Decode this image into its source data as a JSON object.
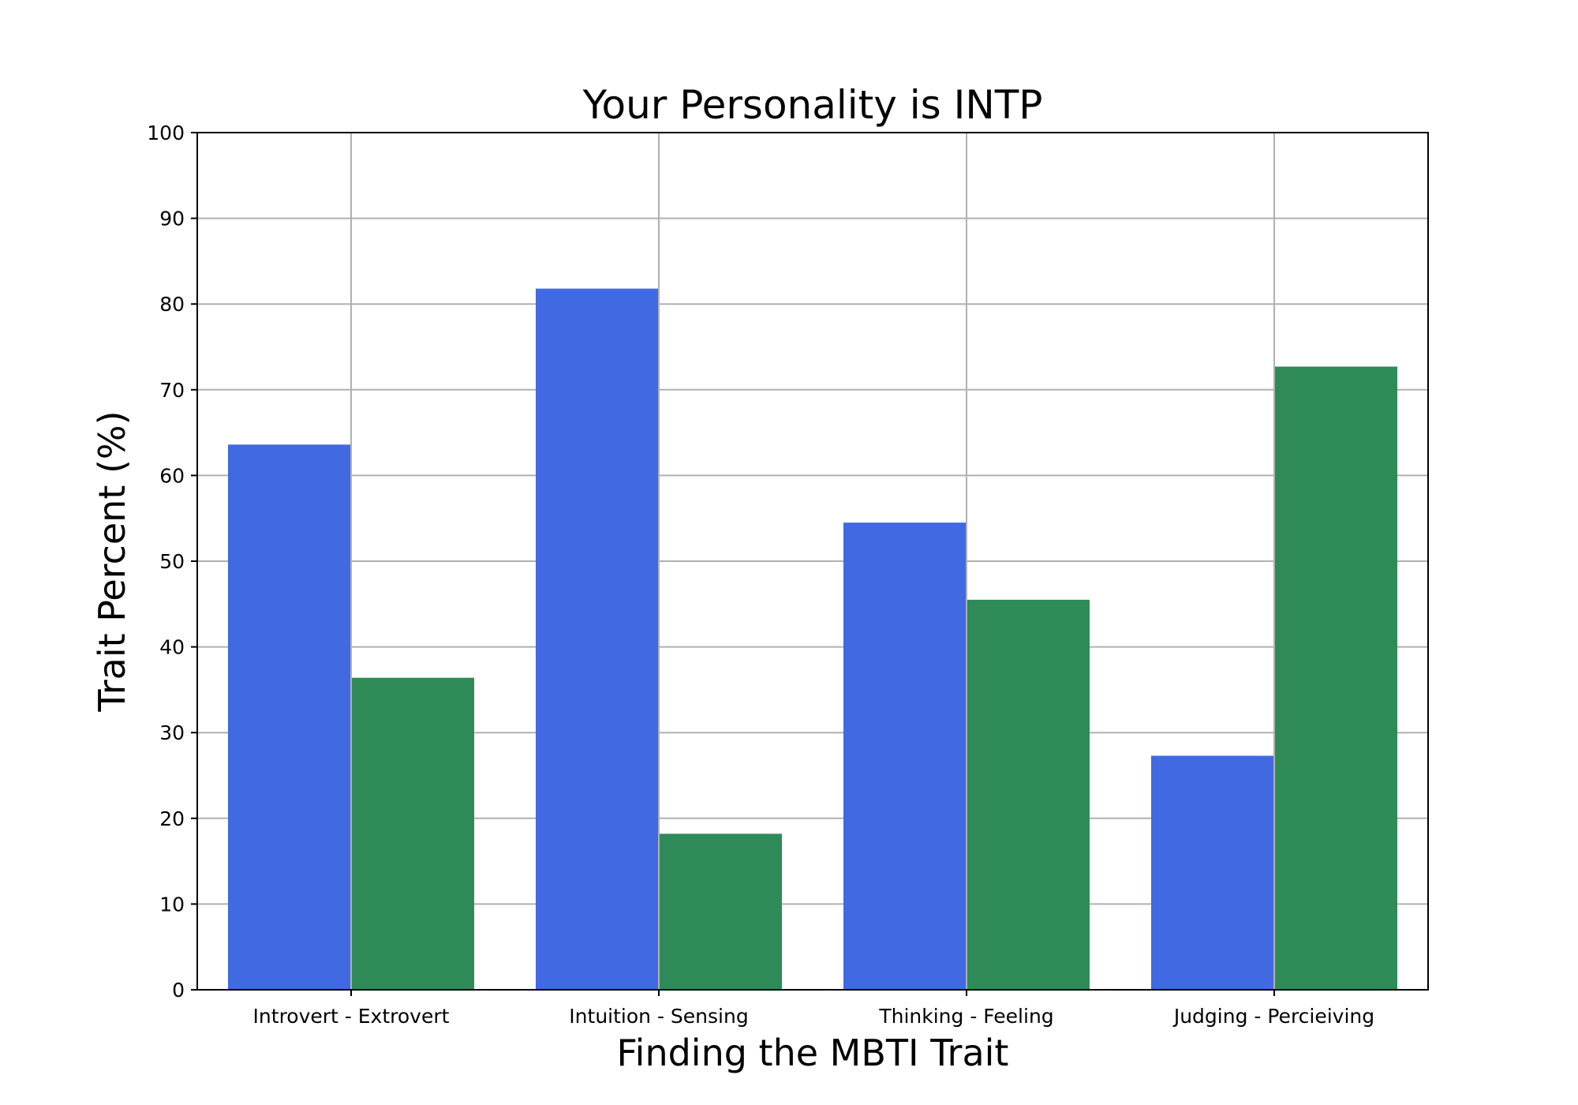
{
  "chart_data": {
    "type": "bar",
    "title": "Your Personality is INTP",
    "xlabel": "Finding the MBTI Trait",
    "ylabel": "Trait Percent (%)",
    "categories": [
      "Introvert - Extrovert",
      "Intuition - Sensing",
      "Thinking - Feeling",
      "Judging - Percieiving"
    ],
    "series": [
      {
        "values": [
          63.6,
          81.8,
          54.5,
          27.3
        ],
        "color": "#4169e1"
      },
      {
        "values": [
          36.4,
          18.2,
          45.5,
          72.7
        ],
        "color": "#2e8b57"
      }
    ],
    "ylim": [
      0,
      100
    ],
    "yticks": [
      "0",
      "10",
      "20",
      "30",
      "40",
      "50",
      "60",
      "70",
      "80",
      "90",
      "100"
    ],
    "grid": true
  }
}
